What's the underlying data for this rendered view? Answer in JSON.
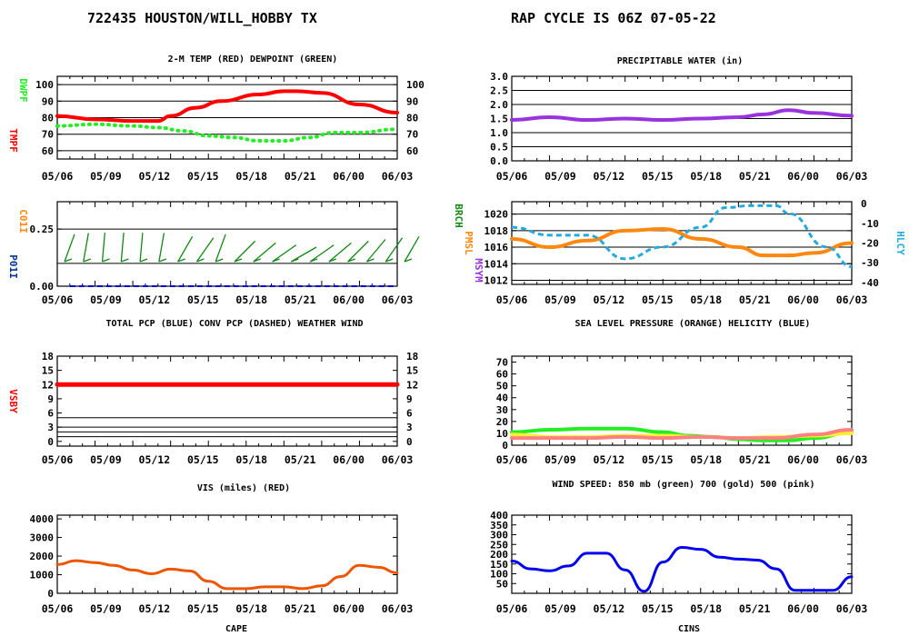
{
  "header": {
    "station": "722435 HOUSTON/WILL_HOBBY TX",
    "cycle": "RAP CYCLE IS  06Z  07-05-22"
  },
  "colors": {
    "red": "#ff0000",
    "green": "#22ee22",
    "purple": "#9933dd",
    "orange": "#ff8811",
    "cyan": "#22aadd",
    "darkgreen": "#118811",
    "blue": "#0000ee",
    "cape": "#ee5500",
    "gold": "#ffee33",
    "pink": "#ff8080",
    "navy": "#003399"
  },
  "x_tick_labels": [
    "05/06",
    "05/09",
    "05/12",
    "05/15",
    "05/18",
    "05/21",
    "06/00",
    "06/03"
  ],
  "chart_data": [
    {
      "id": "temp",
      "type": "line",
      "title": "2-M TEMP (RED) DEWPOINT (GREEN)",
      "left_labels": [
        {
          "text": "TMPF",
          "color": "#ff0000"
        },
        {
          "text": "DWPF",
          "color": "#22ee22"
        }
      ],
      "ylim": [
        55,
        105
      ],
      "yticks": [
        60,
        70,
        80,
        90,
        100
      ],
      "right_ticks": [
        60,
        70,
        80,
        90,
        100
      ],
      "grid": [
        60,
        70,
        80,
        90,
        100
      ],
      "series": [
        {
          "style": "solid",
          "color": "#ff0000",
          "width": 4,
          "x": [
            0,
            3,
            6,
            8,
            9,
            11,
            13,
            16,
            18,
            19,
            21,
            24,
            27
          ],
          "y": [
            81,
            79,
            78,
            78,
            81,
            86,
            90,
            94,
            96,
            96,
            95,
            88,
            83
          ]
        },
        {
          "style": "dot",
          "color": "#22ee22",
          "width": 4,
          "x": [
            0,
            3,
            6,
            8,
            10,
            12,
            14,
            16,
            18,
            20,
            22,
            24,
            27
          ],
          "y": [
            75,
            76,
            75,
            74,
            72,
            69,
            68,
            66,
            66,
            68,
            71,
            71,
            73
          ]
        }
      ],
      "x_tick_labels": [
        "05/06",
        "05/09",
        "05/12",
        "05/15",
        "05/18",
        "05/21",
        "06/00",
        "06/03"
      ]
    },
    {
      "id": "pw",
      "type": "line",
      "title": "PRECIPITABLE WATER (in)",
      "left_labels": [],
      "ylim": [
        0,
        3
      ],
      "yticks": [
        "0.0",
        "0.5",
        "1.0",
        "1.5",
        "2.0",
        "2.5",
        "3.0"
      ],
      "grid": [
        0.5,
        1.0,
        1.5,
        2.0,
        2.5
      ],
      "series": [
        {
          "style": "solid",
          "color": "#9933dd",
          "width": 4,
          "x": [
            0,
            3,
            6,
            9,
            12,
            15,
            18,
            20,
            22,
            24,
            27
          ],
          "y": [
            1.45,
            1.55,
            1.45,
            1.5,
            1.45,
            1.5,
            1.55,
            1.65,
            1.8,
            1.7,
            1.6
          ]
        }
      ],
      "x_tick_labels": [
        "05/06",
        "05/09",
        "05/12",
        "05/15",
        "05/18",
        "05/21",
        "06/00",
        "06/03"
      ]
    },
    {
      "id": "pcp",
      "type": "line",
      "title": "TOTAL PCP (BLUE) CONV PCP (DASHED) WEATHER WIND",
      "left_labels": [
        {
          "text": "P01I",
          "color": "#003399"
        },
        {
          "text": "C01I",
          "color": "#ff8811"
        }
      ],
      "ylim": [
        0,
        0.37
      ],
      "yticks": [
        "0.00",
        "0.25"
      ],
      "grid": [
        0.1,
        0.25
      ],
      "series": [
        {
          "style": "dash",
          "color": "#ff8811",
          "width": 2,
          "x": [
            1,
            27
          ],
          "y": [
            0,
            0
          ]
        },
        {
          "style": "dash",
          "color": "#0000ee",
          "width": 2,
          "x": [
            1,
            27
          ],
          "y": [
            0,
            0
          ]
        }
      ],
      "wind_barbs": [
        {
          "x": 0,
          "dir": 200
        },
        {
          "x": 1.5,
          "dir": 190
        },
        {
          "x": 3,
          "dir": 185
        },
        {
          "x": 4.5,
          "dir": 185
        },
        {
          "x": 6,
          "dir": 185
        },
        {
          "x": 7.5,
          "dir": 190
        },
        {
          "x": 9,
          "dir": 210
        },
        {
          "x": 10.5,
          "dir": 215
        },
        {
          "x": 12,
          "dir": 200
        },
        {
          "x": 13.5,
          "dir": 225
        },
        {
          "x": 15,
          "dir": 230
        },
        {
          "x": 16.5,
          "dir": 235
        },
        {
          "x": 18,
          "dir": 240
        },
        {
          "x": 19.5,
          "dir": 235
        },
        {
          "x": 21,
          "dir": 230
        },
        {
          "x": 22.5,
          "dir": 225
        },
        {
          "x": 24,
          "dir": 220
        },
        {
          "x": 25.5,
          "dir": 215
        },
        {
          "x": 27,
          "dir": 210
        }
      ],
      "x_tick_labels": [
        "05/06",
        "05/09",
        "05/12",
        "05/15",
        "05/18",
        "05/21",
        "06/00",
        "06/03"
      ]
    },
    {
      "id": "slp",
      "type": "line",
      "title": "SEA LEVEL PRESSURE (ORANGE) HELICITY (BLUE)",
      "left_labels": [
        {
          "text": "BRCH",
          "color": "#118811"
        },
        {
          "text": "PMSL",
          "color": "#ff8811"
        },
        {
          "text": "MSYM",
          "color": "#9933dd"
        }
      ],
      "right_labels": [
        {
          "text": "HLCY",
          "color": "#22aadd"
        }
      ],
      "ylim": [
        1011.5,
        1021.5
      ],
      "yticks": [
        1012,
        1014,
        1016,
        1018,
        1020
      ],
      "right_ticks": [
        0,
        -10,
        -20,
        -30,
        -40
      ],
      "right_ylim": [
        -41,
        1
      ],
      "grid": [
        1012,
        1014,
        1016,
        1018,
        1020
      ],
      "series": [
        {
          "style": "solid",
          "color": "#ff8811",
          "width": 4,
          "axis": "left",
          "x": [
            0,
            3,
            6,
            9,
            12,
            15,
            18,
            20,
            22,
            24,
            27
          ],
          "y": [
            1017,
            1016,
            1016.8,
            1018,
            1018.2,
            1017,
            1016,
            1015,
            1015,
            1015.3,
            1016.5
          ]
        },
        {
          "style": "dash",
          "color": "#22aadd",
          "width": 3,
          "axis": "right",
          "x": [
            0,
            3,
            6,
            9,
            12,
            15,
            17,
            19,
            21,
            22,
            25,
            27
          ],
          "y": [
            -12,
            -16,
            -16,
            -28,
            -22,
            -12,
            -2,
            -1,
            -1,
            -5,
            -22,
            -32
          ]
        }
      ],
      "x_tick_labels": [
        "05/06",
        "05/09",
        "05/12",
        "05/15",
        "05/18",
        "05/21",
        "06/00",
        "06/03"
      ]
    },
    {
      "id": "vsby",
      "type": "line",
      "title": "VIS (miles) (RED)",
      "left_labels": [
        {
          "text": "VSBY",
          "color": "#ff0000"
        }
      ],
      "ylim": [
        -1,
        18
      ],
      "yticks": [
        0,
        3,
        6,
        9,
        12,
        15,
        18
      ],
      "right_ticks": [
        0,
        3,
        6,
        9,
        12,
        15,
        18
      ],
      "grid": [
        1,
        2,
        3,
        5
      ],
      "series": [
        {
          "style": "solid",
          "color": "#ff0000",
          "width": 5,
          "x": [
            0,
            27
          ],
          "y": [
            12,
            12
          ]
        }
      ],
      "x_tick_labels": [
        "05/06",
        "05/09",
        "05/12",
        "05/15",
        "05/18",
        "05/21",
        "06/00",
        "06/03"
      ]
    },
    {
      "id": "wind",
      "type": "line",
      "title": "WIND SPEED: 850 mb (green) 700 (gold) 500 (pink)",
      "left_labels": [],
      "ylim": [
        0,
        75
      ],
      "yticks": [
        0,
        10,
        20,
        30,
        40,
        50,
        60,
        70
      ],
      "grid": [],
      "series": [
        {
          "style": "solid",
          "color": "#22ee22",
          "width": 4,
          "x": [
            0,
            3,
            6,
            9,
            12,
            14,
            16,
            18,
            20,
            22,
            24,
            27
          ],
          "y": [
            11,
            13,
            14,
            14,
            11,
            8,
            7,
            5,
            4,
            4,
            6,
            11
          ]
        },
        {
          "style": "solid",
          "color": "#ffee33",
          "width": 4,
          "x": [
            0,
            3,
            6,
            9,
            12,
            15,
            18,
            21,
            24,
            27
          ],
          "y": [
            9,
            7,
            7,
            8,
            8,
            7,
            6,
            7,
            8,
            10
          ]
        },
        {
          "style": "solid",
          "color": "#ff8080",
          "width": 4,
          "x": [
            0,
            3,
            6,
            9,
            12,
            15,
            18,
            21,
            24,
            27
          ],
          "y": [
            6,
            6,
            6,
            7,
            6,
            7,
            6,
            6,
            9,
            13
          ]
        }
      ],
      "x_tick_labels": [
        "05/06",
        "05/09",
        "05/12",
        "05/15",
        "05/18",
        "05/21",
        "06/00",
        "06/03"
      ]
    },
    {
      "id": "cape",
      "type": "line",
      "title": "CAPE",
      "left_labels": [],
      "ylim": [
        0,
        4200
      ],
      "yticks": [
        0,
        1000,
        2000,
        3000,
        4000
      ],
      "grid": [],
      "series": [
        {
          "style": "solid",
          "color": "#ee5500",
          "width": 3,
          "x": [
            0,
            1.5,
            3,
            4.5,
            6,
            7.5,
            9,
            10.5,
            12,
            13.5,
            15,
            16.5,
            18,
            19.5,
            21,
            22.5,
            24,
            25.5,
            27
          ],
          "y": [
            1550,
            1750,
            1650,
            1500,
            1250,
            1050,
            1300,
            1200,
            650,
            250,
            250,
            350,
            350,
            250,
            400,
            900,
            1500,
            1400,
            1100
          ]
        }
      ],
      "x_tick_labels": [
        "05/06",
        "05/09",
        "05/12",
        "05/15",
        "05/18",
        "05/21",
        "06/00",
        "06/03"
      ]
    },
    {
      "id": "cins",
      "type": "line",
      "title": "CINS",
      "left_labels": [],
      "ylim": [
        0,
        400
      ],
      "yticks": [
        50,
        100,
        150,
        200,
        250,
        300,
        350,
        400
      ],
      "grid": [],
      "series": [
        {
          "style": "solid",
          "color": "#0000ee",
          "width": 3,
          "x": [
            0,
            1.5,
            3,
            4.5,
            6,
            7.5,
            9,
            10.5,
            12,
            13.5,
            15,
            16.5,
            18,
            19.5,
            21,
            22.5,
            24,
            25.5,
            27
          ],
          "y": [
            165,
            125,
            115,
            140,
            205,
            205,
            120,
            10,
            160,
            235,
            225,
            185,
            175,
            170,
            125,
            15,
            15,
            15,
            85
          ]
        }
      ],
      "x_tick_labels": [
        "05/06",
        "05/09",
        "05/12",
        "05/15",
        "05/18",
        "05/21",
        "06/00",
        "06/03"
      ]
    }
  ]
}
